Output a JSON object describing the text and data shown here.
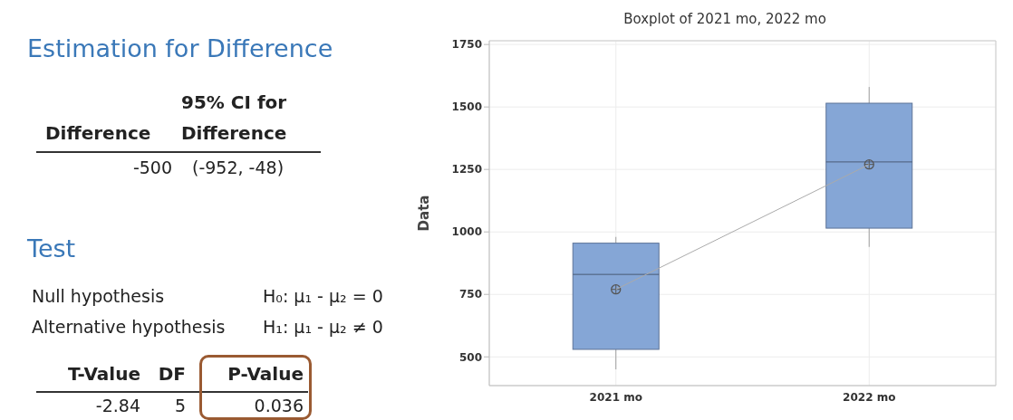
{
  "chart_data": [
    {
      "type": "other",
      "title": "Estimation for Difference",
      "subtitle": "Test",
      "annotations": [
        "95% CI for",
        "Difference",
        "Difference",
        "-500",
        "(-952, -48)",
        "Null hypothesis",
        "H₀: μ₁ - μ₂ = 0",
        "Alternative hypothesis",
        "H₁: μ₁ - μ₂ ≠ 0",
        "T-Value",
        "DF",
        "P-Value",
        "-2.84",
        "5",
        "0.036"
      ]
    },
    {
      "type": "box",
      "title": "Boxplot of 2021 mo, 2022 mo",
      "ylabel": "Data",
      "categories": [
        "2021 mo",
        "2022 mo"
      ],
      "color": "#85a6d6",
      "boxes": [
        {
          "low": 450,
          "q1": 530,
          "median": 830,
          "q3": 955,
          "high": 980,
          "mean": 770
        },
        {
          "low": 940,
          "q1": 1015,
          "median": 1280,
          "q3": 1515,
          "high": 1580,
          "mean": 1270
        }
      ],
      "series": [
        {
          "type": "line",
          "color": "#aaaaaa",
          "values": [
            770,
            1270
          ]
        }
      ],
      "ylim": [
        385,
        1765
      ],
      "yticks": [
        500,
        750,
        1000,
        1250,
        1500,
        1750
      ],
      "grid": true
    }
  ]
}
